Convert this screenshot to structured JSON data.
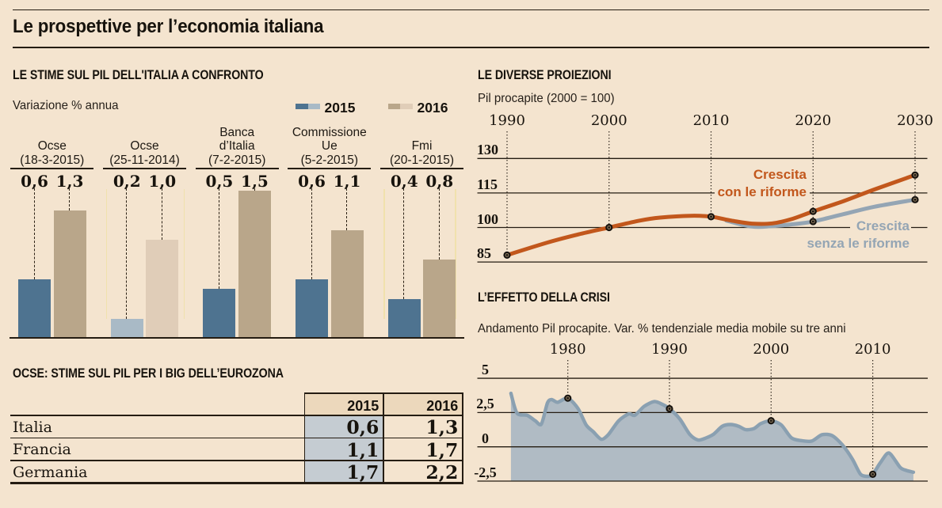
{
  "page": {
    "title": "Le prospettive per l’economia italiana",
    "background": "#f4e4cf"
  },
  "colors": {
    "ink": "#211a11",
    "bar_2015": "#4e7390",
    "bar_2015_muted": "#a9bac6",
    "bar_2016": "#b9a68a",
    "bar_2016_muted": "#e0cdb8",
    "reform_line": "#c2571c",
    "no_reform_line": "#94a5b4",
    "area_fill": "#b0bbc4",
    "area_stroke": "#8aa0b1",
    "table_header_bg": "#ecd8bc",
    "table_col2015_bg": "#c5ccd2",
    "highlight_lines": "#f0e0a8"
  },
  "bar_chart": {
    "title": "LE STIME SUL PIL DELL'ITALIA A CONFRONTO",
    "subtitle": "Variazione % annua",
    "legend": [
      {
        "label": "2015",
        "swatches": [
          "#4e7390",
          "#a9bac6"
        ]
      },
      {
        "label": "2016",
        "swatches": [
          "#b9a68a",
          "#e0cdb8"
        ]
      }
    ]
  },
  "projections_chart": {
    "title": "LE DIVERSE PROIEZIONI",
    "subtitle": "Pil procapite (2000 = 100)"
  },
  "crisis_chart": {
    "title": "L’EFFETTO DELLA CRISI",
    "subtitle": "Andamento Pil procapite. Var. % tendenziale media mobile su tre anni"
  },
  "table": {
    "title": "OCSE: STIME SUL PIL PER I BIG DELL’EUROZONA",
    "columns": [
      "2015",
      "2016"
    ],
    "rows": [
      {
        "label": "Italia",
        "values": [
          "0,6",
          "1,3"
        ]
      },
      {
        "label": "Francia",
        "values": [
          "1,1",
          "1,7"
        ]
      },
      {
        "label": "Germania",
        "values": [
          "1,7",
          "2,2"
        ]
      }
    ]
  },
  "chart_data": [
    {
      "type": "bar",
      "title": "LE STIME SUL PIL DELL'ITALIA A CONFRONTO",
      "ylabel": "Variazione % annua",
      "categories": [
        [
          "Ocse",
          "(18-3-2015)"
        ],
        [
          "Ocse",
          "(25-11-2014)"
        ],
        [
          "Banca",
          "d’Italia",
          "(7-2-2015)"
        ],
        [
          "Commissione",
          "Ue",
          "(5-2-2015)"
        ],
        [
          "Fmi",
          "(20-1-2015)"
        ]
      ],
      "series": [
        {
          "name": "2015",
          "values": [
            0.6,
            0.2,
            0.5,
            0.6,
            0.4
          ]
        },
        {
          "name": "2016",
          "values": [
            1.3,
            1.0,
            1.5,
            1.1,
            0.8
          ]
        }
      ],
      "muted_index": 1
    },
    {
      "type": "line",
      "title": "LE DIVERSE PROIEZIONI",
      "ylabel": "Pil procapite (2000 = 100)",
      "x_ticks": [
        1990,
        2000,
        2010,
        2020,
        2030
      ],
      "y_ticks": [
        130,
        115,
        100,
        85
      ],
      "series": [
        {
          "name": "Crescita con le riforme",
          "label_lines": [
            "Crescita",
            "con le riforme"
          ],
          "dot_years": [
            1990,
            2000,
            2010,
            2020,
            2030
          ],
          "points": [
            [
              1990,
              88
            ],
            [
              1994,
              93.5
            ],
            [
              1997,
              97
            ],
            [
              2000,
              100
            ],
            [
              2003,
              103
            ],
            [
              2005,
              104.3
            ],
            [
              2008,
              105.1
            ],
            [
              2010,
              104.7
            ],
            [
              2012,
              103
            ],
            [
              2014,
              101.7
            ],
            [
              2016,
              101.8
            ],
            [
              2018,
              103.8
            ],
            [
              2020,
              107
            ],
            [
              2023,
              111.5
            ],
            [
              2026,
              116.5
            ],
            [
              2030,
              122.8
            ]
          ]
        },
        {
          "name": "Crescita senza le riforme",
          "label_lines": [
            "Crescita",
            "senza le riforme"
          ],
          "dot_years": [
            2020,
            2030
          ],
          "points": [
            [
              2011.5,
              103
            ],
            [
              2014,
              100.4
            ],
            [
              2016,
              100.6
            ],
            [
              2018,
              101.4
            ],
            [
              2020,
              102.6
            ],
            [
              2023,
              105.8
            ],
            [
              2026,
              109
            ],
            [
              2030,
              112.1
            ]
          ]
        }
      ]
    },
    {
      "type": "area",
      "title": "L’EFFETTO DELLA CRISI",
      "subtitle": "Andamento Pil procapite. Var. % tendenziale media mobile su tre anni",
      "x_ticks": [
        1980,
        1990,
        2000,
        2010
      ],
      "y_ticks": [
        5,
        2.5,
        0,
        -2.5
      ],
      "dot_years": [
        1980,
        1990,
        2000,
        2010
      ],
      "points": [
        [
          1974.4,
          3.9
        ],
        [
          1975,
          2.45
        ],
        [
          1976,
          2.3
        ],
        [
          1976.8,
          1.9
        ],
        [
          1977.4,
          1.66
        ],
        [
          1978,
          3.2
        ],
        [
          1978.4,
          3.45
        ],
        [
          1979,
          3.25
        ],
        [
          1980,
          3.55
        ],
        [
          1981,
          2.8
        ],
        [
          1981.8,
          1.6
        ],
        [
          1982.5,
          1.1
        ],
        [
          1983.3,
          0.55
        ],
        [
          1984,
          0.9
        ],
        [
          1985,
          1.9
        ],
        [
          1986,
          2.4
        ],
        [
          1986.6,
          2.3
        ],
        [
          1987.5,
          2.95
        ],
        [
          1988.5,
          3.3
        ],
        [
          1989.3,
          3.1
        ],
        [
          1990,
          2.78
        ],
        [
          1991,
          2.05
        ],
        [
          1992,
          0.9
        ],
        [
          1992.8,
          0.5
        ],
        [
          1993.5,
          0.62
        ],
        [
          1994.3,
          0.9
        ],
        [
          1995.2,
          1.5
        ],
        [
          1996,
          1.63
        ],
        [
          1996.8,
          1.5
        ],
        [
          1997.5,
          1.25
        ],
        [
          1998.3,
          1.33
        ],
        [
          1999,
          1.7
        ],
        [
          2000,
          1.9
        ],
        [
          2001,
          1.6
        ],
        [
          2002,
          0.65
        ],
        [
          2003,
          0.45
        ],
        [
          2004,
          0.42
        ],
        [
          2005,
          0.88
        ],
        [
          2006,
          0.82
        ],
        [
          2007,
          0.15
        ],
        [
          2008,
          -0.9
        ],
        [
          2008.8,
          -2.0
        ],
        [
          2009.5,
          -2.15
        ],
        [
          2010,
          -2.0
        ],
        [
          2010.8,
          -1.1
        ],
        [
          2011.6,
          -0.45
        ],
        [
          2012.7,
          -1.5
        ],
        [
          2013.3,
          -1.72
        ],
        [
          2014,
          -1.85
        ]
      ]
    },
    {
      "type": "table",
      "title": "OCSE: STIME SUL PIL PER I BIG DELL’EUROZONA",
      "columns": [
        "2015",
        "2016"
      ],
      "rows": [
        [
          "Italia",
          0.6,
          1.3
        ],
        [
          "Francia",
          1.1,
          1.7
        ],
        [
          "Germania",
          1.7,
          2.2
        ]
      ]
    }
  ]
}
